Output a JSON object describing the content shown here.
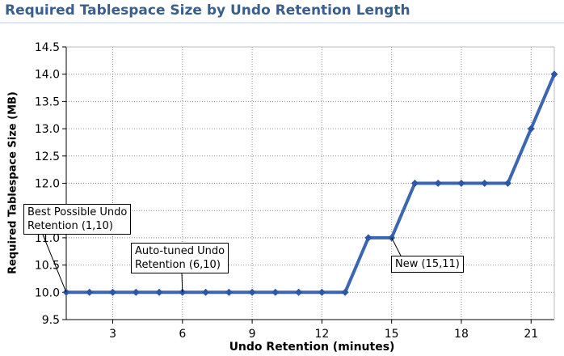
{
  "chart_data": {
    "type": "line",
    "title": "Required Tablespace Size by Undo Retention Length",
    "xlabel": "Undo Retention (minutes)",
    "ylabel": "Required Tablespace Size (MB)",
    "xlim": [
      1,
      22
    ],
    "ylim": [
      9.5,
      14.5
    ],
    "xticks": [
      3,
      6,
      9,
      12,
      15,
      18,
      21
    ],
    "yticks": [
      9.5,
      10.0,
      10.5,
      11.0,
      11.5,
      12.0,
      12.5,
      13.0,
      13.5,
      14.0,
      14.5
    ],
    "ytick_labels": [
      "9.5",
      "10.0",
      "10.5",
      "11.0",
      "11.5",
      "12.0",
      "12.5",
      "13.0",
      "13.5",
      "14.0",
      "14.5"
    ],
    "grid": true,
    "series": [
      {
        "x": [
          1,
          2,
          3,
          4,
          5,
          6,
          7,
          8,
          9,
          10,
          11,
          12,
          13,
          14,
          15,
          16,
          17,
          18,
          19,
          20,
          21,
          22
        ],
        "y": [
          10,
          10,
          10,
          10,
          10,
          10,
          10,
          10,
          10,
          10,
          10,
          10,
          10,
          11,
          11,
          12,
          12,
          12,
          12,
          12,
          13,
          14
        ]
      }
    ],
    "annotations": [
      {
        "lines": [
          "Best Possible Undo",
          "Retention (1,10)"
        ],
        "x": 1,
        "y": 10
      },
      {
        "lines": [
          "Auto-tuned Undo",
          "Retention (6,10)"
        ],
        "x": 6,
        "y": 10
      },
      {
        "lines": [
          "New (15,11)"
        ],
        "x": 15,
        "y": 11
      }
    ],
    "colors": {
      "line": "#3b66b4",
      "marker": "#2b57a8",
      "title": "#3a5f8c",
      "grid": "#8c8c8c"
    }
  }
}
